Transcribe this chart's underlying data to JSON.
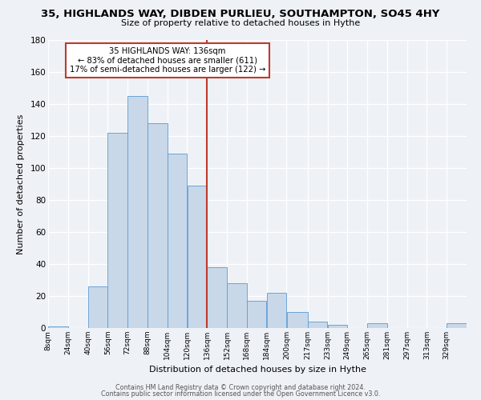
{
  "title": "35, HIGHLANDS WAY, DIBDEN PURLIEU, SOUTHAMPTON, SO45 4HY",
  "subtitle": "Size of property relative to detached houses in Hythe",
  "xlabel": "Distribution of detached houses by size in Hythe",
  "ylabel": "Number of detached properties",
  "bin_labels": [
    "8sqm",
    "24sqm",
    "40sqm",
    "56sqm",
    "72sqm",
    "88sqm",
    "104sqm",
    "120sqm",
    "136sqm",
    "152sqm",
    "168sqm",
    "184sqm",
    "200sqm",
    "217sqm",
    "233sqm",
    "249sqm",
    "265sqm",
    "281sqm",
    "297sqm",
    "313sqm",
    "329sqm"
  ],
  "bin_edges": [
    8,
    24,
    40,
    56,
    72,
    88,
    104,
    120,
    136,
    152,
    168,
    184,
    200,
    217,
    233,
    249,
    265,
    281,
    297,
    313,
    329,
    345
  ],
  "counts": [
    1,
    0,
    26,
    122,
    145,
    128,
    109,
    89,
    38,
    28,
    17,
    22,
    10,
    4,
    2,
    0,
    3,
    0,
    0,
    0,
    3
  ],
  "property_size": 136,
  "annotation_line1": "35 HIGHLANDS WAY: 136sqm",
  "annotation_line2": "← 83% of detached houses are smaller (611)",
  "annotation_line3": "17% of semi-detached houses are larger (122) →",
  "bar_color": "#c8d8e8",
  "bar_edge_color": "#5b9bd5",
  "vline_color": "#c0392b",
  "box_edge_color": "#c0392b",
  "background_color": "#eef2f7",
  "grid_color": "#ffffff",
  "ylim": [
    0,
    180
  ],
  "footer_line1": "Contains HM Land Registry data © Crown copyright and database right 2024.",
  "footer_line2": "Contains public sector information licensed under the Open Government Licence v3.0."
}
